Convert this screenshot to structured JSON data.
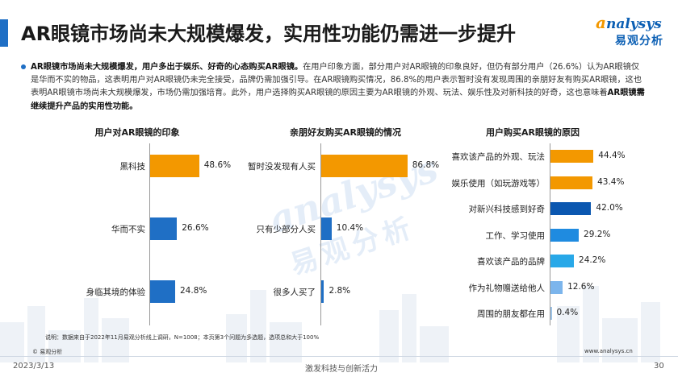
{
  "header": {
    "title": "AR眼镜市场尚未大规模爆发，实用性功能仍需进一步提升",
    "logo_en_a": "a",
    "logo_en_rest": "nalysys",
    "logo_cn": "易观分析"
  },
  "summary": {
    "bold1": "AR眼镜市场尚未大规模爆发，用户多出于娱乐、好奇的心态购买AR眼镜。",
    "text1": "在用户印象方面，部分用户对AR眼镜的印象良好，但仍有部分用户（26.6%）认为AR眼镜仅是华而不实的物品，这表明用户对AR眼镜仍未完全接受，品牌仍需加强引导。在AR眼镜购买情况，86.8%的用户表示暂时没有发现周围的亲朋好友有购买AR眼镜，这也表明AR眼镜市场尚未大规模爆发，市场仍需加强培育。此外，用户选择购买AR眼镜的原因主要为AR眼镜的外观、玩法、娱乐性及对新科技的好奇，这也意味着",
    "bold2": "AR眼镜需继续提升产品的实用性功能。"
  },
  "watermark": {
    "en": "analysys",
    "cn": "易观分析"
  },
  "chart_data": [
    {
      "type": "bar",
      "orientation": "horizontal",
      "title": "用户对AR眼镜的印象",
      "categories": [
        "黑科技",
        "华而不实",
        "身临其境的体验"
      ],
      "values": [
        48.6,
        26.6,
        24.8
      ],
      "unit": "%",
      "colors": [
        "#f39800",
        "#1f6fc5",
        "#1f6fc5"
      ]
    },
    {
      "type": "bar",
      "orientation": "horizontal",
      "title": "亲朋好友购买AR眼镜的情况",
      "categories": [
        "暂时没发现有人买",
        "只有少部分人买",
        "很多人买了"
      ],
      "values": [
        86.8,
        10.4,
        2.8
      ],
      "unit": "%",
      "colors": [
        "#f39800",
        "#1f6fc5",
        "#1f6fc5"
      ]
    },
    {
      "type": "bar",
      "orientation": "horizontal",
      "title": "用户购买AR眼镜的原因",
      "categories": [
        "喜欢该产品的外观、玩法",
        "娱乐使用（如玩游戏等）",
        "对新兴科技感到好奇",
        "工作、学习使用",
        "喜欢该产品的品牌",
        "作为礼物赠送给他人",
        "周围的朋友都在用"
      ],
      "values": [
        44.4,
        43.4,
        42.0,
        29.2,
        24.2,
        12.6,
        0.4
      ],
      "unit": "%",
      "colors": [
        "#f39800",
        "#f39800",
        "#0b57b0",
        "#1f8be0",
        "#28a8e8",
        "#7cb5ec",
        "#9dc3e6"
      ]
    }
  ],
  "footer": {
    "note": "说明：数据来自于2022年11月易观分析线上调研，N=1008；本页第3个问题为多选题，选项总和大于100%",
    "copyright": "© 易观分析",
    "site": "www.analysys.cn",
    "date": "2023/3/13",
    "slogan": "激发科技与创新活力",
    "page": "30"
  }
}
